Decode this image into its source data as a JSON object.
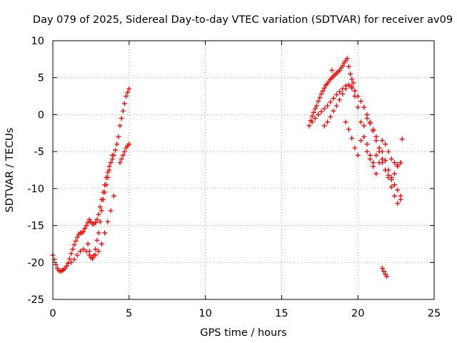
{
  "chart_data": {
    "type": "scatter",
    "title": "Day 079 of 2025, Sidereal Day-to-day VTEC variation (SDTVAR) for receiver av09",
    "xlabel": "GPS time / hours",
    "ylabel": "SDTVAR / TECUs",
    "xlim": [
      0,
      25
    ],
    "ylim": [
      -25,
      10
    ],
    "xticks": [
      0,
      5,
      10,
      15,
      20,
      25
    ],
    "yticks": [
      -25,
      -20,
      -15,
      -10,
      -5,
      0,
      5,
      10
    ],
    "grid": true,
    "marker": "+",
    "series": [
      {
        "name": "SDTVAR",
        "color": "#ff0000",
        "x": [
          0.0,
          0.1,
          0.2,
          0.3,
          0.4,
          0.5,
          0.6,
          0.7,
          0.8,
          0.9,
          1.0,
          1.1,
          1.2,
          1.3,
          1.4,
          1.5,
          1.6,
          1.7,
          1.8,
          1.9,
          2.0,
          2.1,
          2.2,
          2.3,
          2.4,
          2.5,
          2.6,
          2.7,
          2.8,
          2.9,
          3.0,
          3.1,
          3.2,
          3.3,
          3.4,
          3.5,
          3.6,
          3.7,
          3.8,
          3.9,
          4.0,
          4.1,
          4.2,
          4.3,
          4.4,
          4.5,
          4.6,
          4.7,
          4.8,
          4.9,
          5.0,
          1.2,
          1.4,
          1.6,
          1.8,
          2.0,
          2.2,
          2.4,
          2.6,
          2.8,
          3.0,
          3.2,
          3.4,
          3.6,
          3.8,
          4.0,
          4.4,
          4.5,
          4.6,
          4.7,
          4.8,
          4.9,
          5.0,
          2.3,
          2.4,
          2.5,
          2.6,
          2.7,
          2.8,
          2.9,
          3.0,
          3.1,
          3.2,
          3.3,
          3.4,
          3.5,
          3.6,
          3.7,
          3.8,
          3.9,
          16.8,
          16.9,
          17.0,
          17.1,
          17.2,
          17.3,
          17.4,
          17.5,
          17.6,
          17.7,
          17.8,
          17.9,
          18.0,
          18.1,
          18.2,
          18.3,
          18.4,
          18.5,
          18.6,
          18.7,
          18.8,
          18.9,
          19.0,
          19.1,
          19.2,
          19.3,
          19.4,
          19.5,
          19.6,
          19.7,
          17.0,
          17.2,
          17.4,
          17.6,
          17.8,
          18.0,
          18.2,
          18.4,
          18.6,
          18.8,
          19.0,
          19.2,
          19.4,
          19.6,
          19.8,
          20.0,
          20.2,
          20.4,
          20.6,
          20.8,
          21.0,
          21.2,
          21.4,
          21.6,
          21.8,
          22.0,
          22.2,
          22.4,
          22.6,
          22.8,
          17.8,
          18.0,
          18.2,
          18.4,
          18.6,
          18.8,
          19.0,
          19.2,
          19.4,
          19.6,
          19.8,
          20.0,
          20.2,
          20.4,
          20.6,
          20.8,
          21.0,
          21.2,
          21.4,
          21.6,
          21.8,
          22.0,
          22.2,
          22.4,
          22.6,
          22.8,
          19.2,
          19.4,
          19.6,
          19.8,
          20.0,
          20.2,
          20.4,
          20.6,
          20.8,
          21.0,
          21.2,
          21.4,
          21.6,
          21.8,
          22.0,
          22.2,
          22.4,
          22.6,
          22.8,
          20.6,
          20.8,
          21.0,
          21.2,
          21.4,
          21.6,
          21.8,
          22.0,
          22.2,
          22.4,
          22.6,
          22.8,
          21.6,
          21.7,
          21.8,
          21.9,
          18.3,
          22.9
        ],
        "y": [
          -19.0,
          -19.6,
          -20.3,
          -20.8,
          -21.1,
          -21.2,
          -21.1,
          -21.0,
          -20.8,
          -20.5,
          -20.1,
          -19.5,
          -18.8,
          -18.2,
          -17.6,
          -17.1,
          -16.6,
          -16.2,
          -16.0,
          -16.0,
          -15.8,
          -15.4,
          -15.0,
          -14.6,
          -14.2,
          -14.5,
          -14.8,
          -14.8,
          -14.6,
          -14.2,
          -13.5,
          -12.5,
          -11.5,
          -10.5,
          -9.5,
          -8.5,
          -7.8,
          -7.0,
          -6.5,
          -6.0,
          -5.5,
          -4.8,
          -4.0,
          -3.0,
          -1.5,
          -0.5,
          0.5,
          1.5,
          2.5,
          3.0,
          3.5,
          -20.0,
          -19.6,
          -19.0,
          -18.5,
          -18.2,
          -18.5,
          -19.0,
          -19.3,
          -19.0,
          -18.5,
          -17.5,
          -16.0,
          -14.5,
          -13.0,
          -11.0,
          -6.5,
          -6.0,
          -5.5,
          -5.0,
          -4.5,
          -4.2,
          -4.0,
          -17.5,
          -18.5,
          -19.3,
          -19.5,
          -19.0,
          -18.2,
          -17.0,
          -16.0,
          -14.5,
          -13.0,
          -11.5,
          -10.5,
          -9.5,
          -8.5,
          -7.5,
          -6.5,
          -5.5,
          -1.5,
          -0.8,
          -0.2,
          0.3,
          0.8,
          1.2,
          1.8,
          2.3,
          2.8,
          3.2,
          3.6,
          4.0,
          4.2,
          4.5,
          4.8,
          5.0,
          5.2,
          5.4,
          5.6,
          5.8,
          6.0,
          6.3,
          6.6,
          7.0,
          7.3,
          7.6,
          6.5,
          5.5,
          4.8,
          4.3,
          -1.0,
          -0.5,
          0.0,
          0.4,
          0.8,
          1.2,
          1.7,
          2.2,
          2.7,
          3.1,
          3.5,
          3.9,
          4.0,
          3.8,
          3.2,
          2.5,
          1.8,
          1.0,
          0.0,
          -1.0,
          -2.2,
          -3.5,
          -5.0,
          -6.5,
          -7.5,
          -8.2,
          -8.8,
          -9.5,
          -10.2,
          -11.0,
          -1.5,
          -1.0,
          -0.3,
          0.5,
          1.2,
          2.0,
          2.8,
          3.5,
          4.0,
          3.6,
          2.5,
          1.0,
          -1.0,
          -3.0,
          -5.0,
          -6.0,
          -6.5,
          -5.5,
          -4.5,
          -3.5,
          -4.0,
          -5.0,
          -6.0,
          -6.5,
          -6.8,
          -6.5,
          -1.0,
          -2.0,
          -3.2,
          -4.5,
          -5.5,
          -3.5,
          -1.5,
          -0.5,
          -1.2,
          -2.0,
          -3.0,
          -4.5,
          -6.0,
          -7.5,
          -8.5,
          -9.8,
          -11.0,
          -12.0,
          -11.5,
          -4.0,
          -5.5,
          -7.0,
          -8.0,
          -6.5,
          -5.0,
          -6.2,
          -7.5,
          -8.5,
          -8.0,
          -7.0,
          -6.5,
          -20.8,
          -21.2,
          -21.6,
          -21.9,
          6.0,
          -3.3
        ]
      }
    ]
  }
}
